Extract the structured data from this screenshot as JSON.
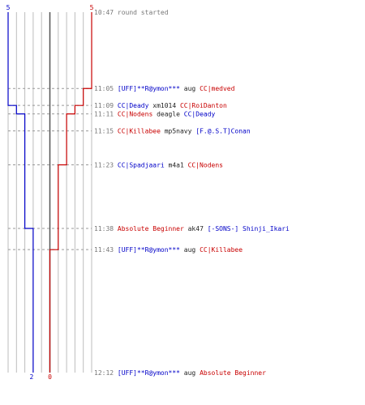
{
  "chart_data": {
    "type": "line",
    "title": "",
    "teams": [
      {
        "name": "blue",
        "color": "#0000c8",
        "start_label": "5",
        "end_label": "2"
      },
      {
        "name": "red",
        "color": "#c80000",
        "start_label": "5",
        "end_label": "0"
      }
    ],
    "x_range": [
      0,
      10
    ],
    "x_ticks": [
      0,
      1,
      2,
      3,
      4,
      5,
      6,
      7,
      8,
      9,
      10
    ],
    "y_range_minutes": [
      0,
      85
    ],
    "series": [
      {
        "color_key": "blue",
        "steps": [
          {
            "t": 0,
            "v": 5
          },
          {
            "t": 22,
            "v": 4
          },
          {
            "t": 24,
            "v": 3
          },
          {
            "t": 51,
            "v": 2
          }
        ]
      },
      {
        "color_key": "red",
        "steps": [
          {
            "t": 0,
            "v": 5
          },
          {
            "t": 18,
            "v": 4
          },
          {
            "t": 22,
            "v": 3
          },
          {
            "t": 24,
            "v": 2
          },
          {
            "t": 36,
            "v": 1
          },
          {
            "t": 56,
            "v": 0
          }
        ]
      }
    ],
    "events": [
      {
        "t": 0,
        "time": "10:47",
        "parts": [
          {
            "text": "round started",
            "c": "gray"
          }
        ],
        "dashed": false
      },
      {
        "t": 18,
        "time": "11:05",
        "parts": [
          {
            "text": "[UFF]**R@ymon***",
            "c": "blue"
          },
          {
            "text": " aug ",
            "c": "black"
          },
          {
            "text": "CC|medved",
            "c": "red"
          }
        ],
        "dashed": true
      },
      {
        "t": 22,
        "time": "11:09",
        "parts": [
          {
            "text": "CC|Deady",
            "c": "blue"
          },
          {
            "text": " xm1014 ",
            "c": "black"
          },
          {
            "text": "CC|RoiDanton",
            "c": "red"
          }
        ],
        "dashed": true
      },
      {
        "t": 24,
        "time": "11:11",
        "parts": [
          {
            "text": "CC|Nodens",
            "c": "red"
          },
          {
            "text": " deagle ",
            "c": "black"
          },
          {
            "text": "CC|Deady",
            "c": "blue"
          }
        ],
        "dashed": true
      },
      {
        "t": 28,
        "time": "11:15",
        "parts": [
          {
            "text": "CC|Killabee",
            "c": "red"
          },
          {
            "text": " mp5navy ",
            "c": "black"
          },
          {
            "text": "[F.@.S.T]Conan",
            "c": "blue"
          }
        ],
        "dashed": true
      },
      {
        "t": 36,
        "time": "11:23",
        "parts": [
          {
            "text": "CC|Spadjaari",
            "c": "blue"
          },
          {
            "text": " m4a1 ",
            "c": "black"
          },
          {
            "text": "CC|Nodens",
            "c": "red"
          }
        ],
        "dashed": true
      },
      {
        "t": 51,
        "time": "11:38",
        "parts": [
          {
            "text": "Absolute Beginner",
            "c": "red"
          },
          {
            "text": " ak47 ",
            "c": "black"
          },
          {
            "text": "[-SONS-] Shinji_Ikari",
            "c": "blue"
          }
        ],
        "dashed": true
      },
      {
        "t": 56,
        "time": "11:43",
        "parts": [
          {
            "text": "[UFF]**R@ymon***",
            "c": "blue"
          },
          {
            "text": " aug ",
            "c": "black"
          },
          {
            "text": "CC|Killabee",
            "c": "red"
          }
        ],
        "dashed": true
      },
      {
        "t": 85,
        "time": "12:12",
        "parts": [
          {
            "text": "[UFF]**R@ymon***",
            "c": "blue"
          },
          {
            "text": " aug ",
            "c": "black"
          },
          {
            "text": "Absolute Beginner",
            "c": "red"
          }
        ],
        "dashed": false
      }
    ],
    "colors": {
      "blue": "#0000c8",
      "red": "#c80000",
      "black": "#222222",
      "gray": "#777777",
      "grid": "#bdbdbd",
      "center": "#555555"
    }
  }
}
